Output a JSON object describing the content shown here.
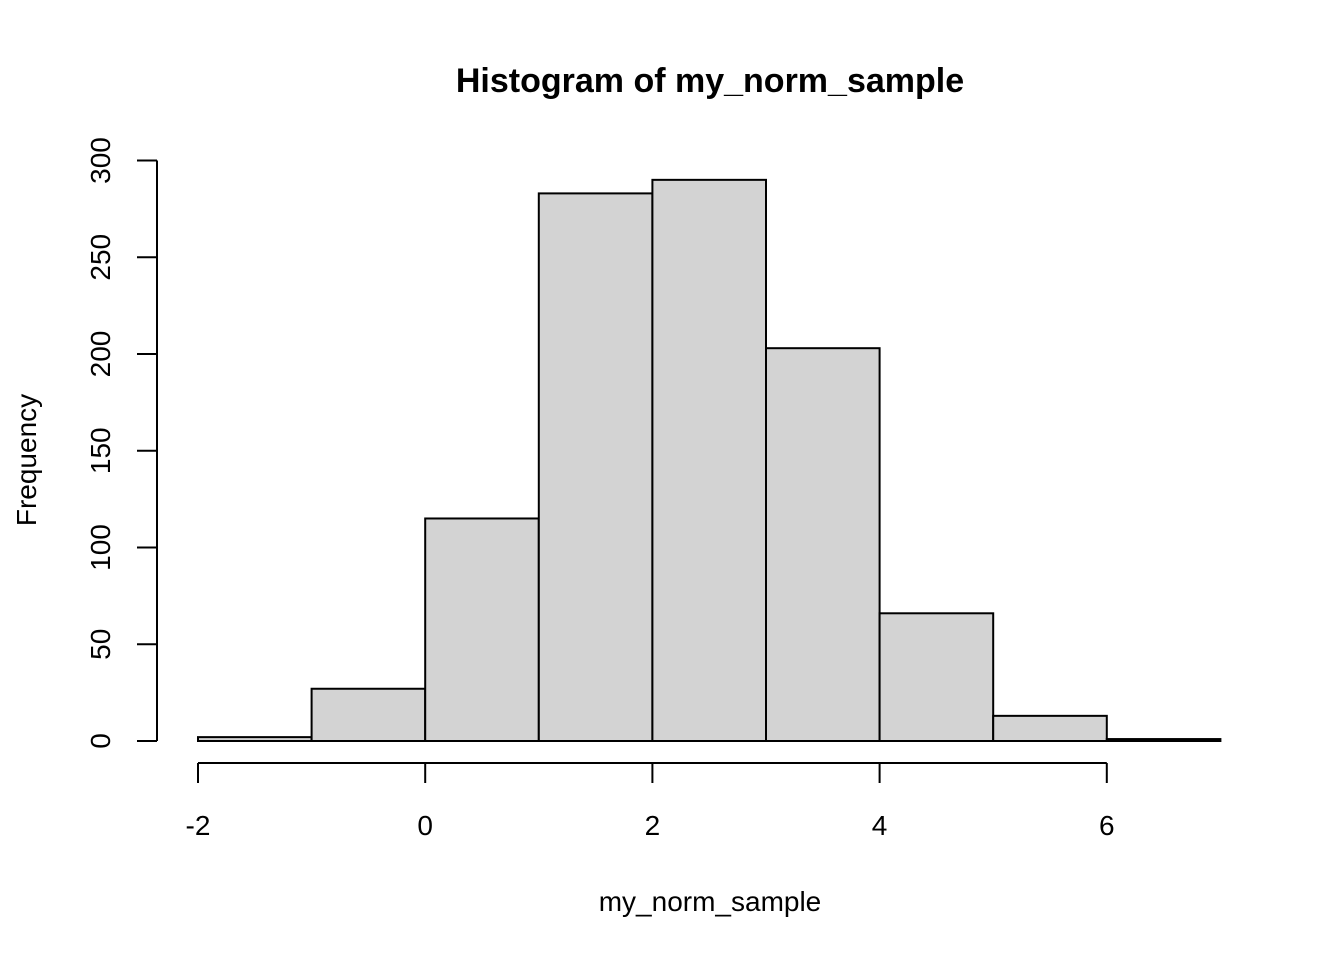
{
  "chart_data": {
    "type": "bar",
    "title": "Histogram of my_norm_sample",
    "xlabel": "my_norm_sample",
    "ylabel": "Frequency",
    "bins": [
      {
        "x0": -2,
        "x1": -1,
        "count": 2
      },
      {
        "x0": -1,
        "x1": 0,
        "count": 27
      },
      {
        "x0": 0,
        "x1": 1,
        "count": 115
      },
      {
        "x0": 1,
        "x1": 2,
        "count": 283
      },
      {
        "x0": 2,
        "x1": 3,
        "count": 290
      },
      {
        "x0": 3,
        "x1": 4,
        "count": 203
      },
      {
        "x0": 4,
        "x1": 5,
        "count": 66
      },
      {
        "x0": 5,
        "x1": 6,
        "count": 13
      },
      {
        "x0": 6,
        "x1": 7,
        "count": 1
      }
    ],
    "x_ticks": [
      -2,
      0,
      2,
      4,
      6
    ],
    "y_ticks": [
      0,
      50,
      100,
      150,
      200,
      250,
      300
    ],
    "xlim": [
      -2,
      7
    ],
    "ylim": [
      0,
      300
    ],
    "bar_color": "#d3d3d3",
    "grid": false
  }
}
